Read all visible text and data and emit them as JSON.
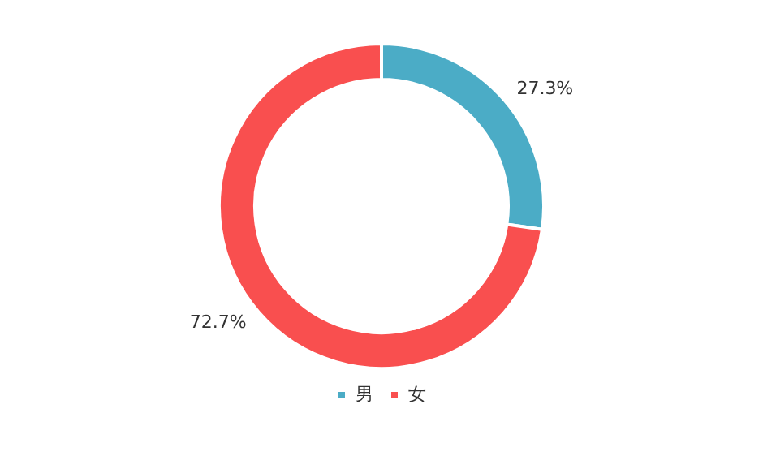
{
  "chart_data": {
    "type": "donut",
    "categories": [
      "男",
      "女"
    ],
    "values": [
      27.3,
      72.7
    ],
    "colors": [
      "#4bacc6",
      "#f94f4f"
    ],
    "value_labels": [
      "27.3%",
      "72.7%"
    ],
    "legend": "bottom"
  }
}
